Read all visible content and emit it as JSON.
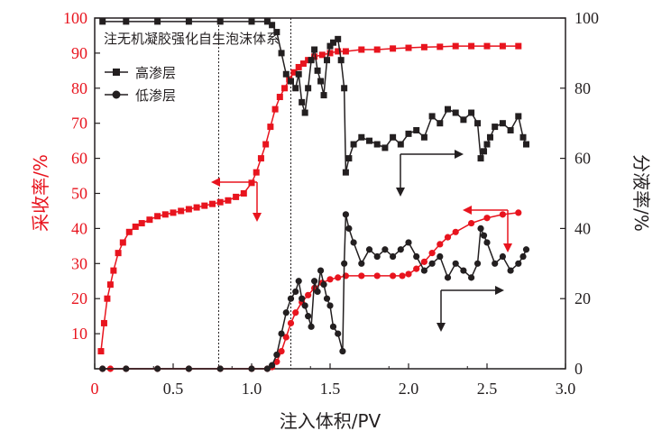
{
  "chart_data": {
    "type": "line",
    "annotation": "注无机凝胶强化自生泡沫体系",
    "xlabel": "注入体积/PV",
    "ylabel_left": "采收率/%",
    "ylabel_right": "分液率/%",
    "xlim": [
      0,
      3.0
    ],
    "ylim_left": [
      0,
      100
    ],
    "ylim_right": [
      0,
      100
    ],
    "x_ticks": [
      "0",
      "0.5",
      "1.0",
      "1.5",
      "2.0",
      "2.5",
      "3.0"
    ],
    "y_left_ticks": [
      "0",
      "10",
      "20",
      "30",
      "40",
      "50",
      "60",
      "70",
      "80",
      "90",
      "100"
    ],
    "y_right_ticks": [
      "0",
      "20",
      "40",
      "60",
      "80",
      "100"
    ],
    "left_axis_color": "#e8141e",
    "vlines_x": [
      0.79,
      1.25
    ],
    "legend": [
      "高渗层",
      "低渗层"
    ],
    "series": [
      {
        "axis": "left",
        "color": "#e8141e",
        "marker": "square",
        "x": [
          0.04,
          0.06,
          0.08,
          0.1,
          0.12,
          0.15,
          0.18,
          0.22,
          0.26,
          0.3,
          0.35,
          0.4,
          0.45,
          0.5,
          0.55,
          0.6,
          0.65,
          0.7,
          0.75,
          0.8,
          0.85,
          0.9,
          0.95,
          1.0,
          1.03,
          1.06,
          1.09,
          1.12,
          1.15,
          1.18,
          1.21,
          1.24,
          1.27,
          1.3,
          1.33,
          1.36,
          1.4,
          1.45,
          1.5,
          1.55,
          1.6,
          1.7,
          1.8,
          1.9,
          2.0,
          2.1,
          2.2,
          2.3,
          2.4,
          2.5,
          2.6,
          2.7
        ],
        "values": [
          5,
          13,
          20,
          24,
          28,
          33,
          36,
          39,
          40.5,
          41.5,
          42.5,
          43.5,
          44,
          44.5,
          45,
          45.5,
          46,
          46.5,
          47,
          47.5,
          48,
          49,
          50,
          53,
          56,
          60,
          64,
          69,
          74,
          77.5,
          80,
          82.5,
          84.5,
          86,
          87,
          88,
          89,
          89.5,
          90,
          90.5,
          90.5,
          91,
          91,
          91.3,
          91.5,
          91.7,
          91.8,
          92,
          92,
          92,
          92,
          92
        ]
      },
      {
        "axis": "left",
        "color": "#e8141e",
        "marker": "circle",
        "x": [
          0.05,
          0.1,
          0.2,
          0.4,
          0.6,
          0.8,
          1.0,
          1.1,
          1.13,
          1.16,
          1.19,
          1.22,
          1.25,
          1.28,
          1.32,
          1.36,
          1.4,
          1.45,
          1.5,
          1.55,
          1.6,
          1.7,
          1.8,
          1.9,
          1.96,
          2.0,
          2.05,
          2.1,
          2.15,
          2.2,
          2.25,
          2.3,
          2.4,
          2.5,
          2.6,
          2.7
        ],
        "values": [
          0,
          0,
          0,
          0,
          0,
          0,
          0,
          0,
          0.5,
          2,
          5,
          9,
          13,
          16,
          19,
          21,
          23,
          24.5,
          25.5,
          26,
          26.5,
          26.5,
          26.5,
          26.5,
          26.5,
          27,
          28.5,
          30.5,
          33,
          35.5,
          37.5,
          39,
          41.5,
          43,
          44,
          44.5
        ]
      },
      {
        "axis": "right",
        "color": "#231f20",
        "marker": "square",
        "x": [
          0.05,
          0.2,
          0.4,
          0.6,
          0.8,
          1.0,
          1.1,
          1.13,
          1.16,
          1.19,
          1.22,
          1.25,
          1.28,
          1.3,
          1.32,
          1.34,
          1.36,
          1.38,
          1.4,
          1.42,
          1.44,
          1.46,
          1.48,
          1.5,
          1.52,
          1.55,
          1.57,
          1.59,
          1.6,
          1.62,
          1.65,
          1.7,
          1.75,
          1.8,
          1.85,
          1.9,
          1.95,
          2.0,
          2.05,
          2.1,
          2.15,
          2.2,
          2.25,
          2.3,
          2.35,
          2.4,
          2.44,
          2.46,
          2.48,
          2.5,
          2.52,
          2.55,
          2.6,
          2.65,
          2.7,
          2.73,
          2.75
        ],
        "values": [
          99,
          99,
          99,
          99,
          99,
          99,
          99,
          98,
          96,
          90,
          84,
          82,
          80,
          84,
          76,
          73,
          80,
          88,
          91,
          85,
          82,
          78,
          88,
          92,
          93,
          94,
          88,
          80,
          56,
          60,
          64,
          66,
          65,
          64,
          63,
          66,
          64,
          67,
          68,
          66,
          72,
          70,
          74,
          73,
          71,
          73,
          70,
          60,
          62,
          64,
          66,
          69,
          70,
          68,
          72,
          66,
          64
        ]
      },
      {
        "axis": "right",
        "color": "#231f20",
        "marker": "circle",
        "x": [
          0.05,
          0.2,
          0.4,
          0.6,
          0.8,
          1.0,
          1.1,
          1.13,
          1.16,
          1.19,
          1.22,
          1.25,
          1.28,
          1.3,
          1.32,
          1.34,
          1.36,
          1.38,
          1.4,
          1.42,
          1.44,
          1.46,
          1.48,
          1.5,
          1.52,
          1.55,
          1.58,
          1.59,
          1.6,
          1.62,
          1.65,
          1.7,
          1.75,
          1.8,
          1.85,
          1.9,
          1.95,
          2.0,
          2.05,
          2.1,
          2.15,
          2.2,
          2.25,
          2.3,
          2.35,
          2.4,
          2.44,
          2.46,
          2.48,
          2.5,
          2.55,
          2.6,
          2.65,
          2.7,
          2.73,
          2.75
        ],
        "values": [
          0,
          0,
          0,
          0,
          0,
          0,
          0,
          1,
          4,
          10,
          16,
          20,
          22,
          25,
          20,
          18,
          15,
          12,
          25,
          22,
          28,
          24,
          20,
          18,
          12,
          10,
          5,
          30,
          44,
          40,
          36,
          30,
          34,
          32,
          34,
          32,
          34,
          36,
          32,
          28,
          30,
          32,
          26,
          30,
          28,
          26,
          30,
          40,
          38,
          36,
          30,
          32,
          28,
          30,
          32,
          34
        ]
      }
    ]
  }
}
